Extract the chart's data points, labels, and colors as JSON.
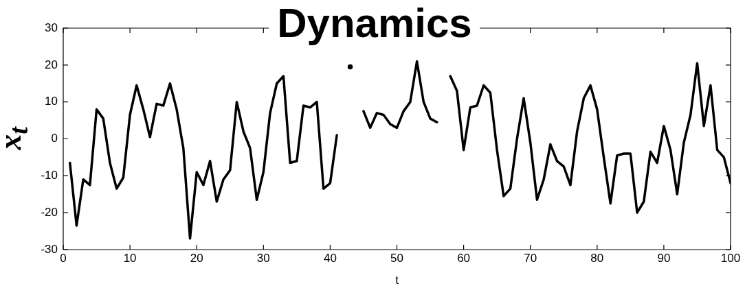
{
  "chart_data": {
    "type": "line",
    "title": "Dynamics",
    "xlabel": "t",
    "ylabel": "x$_{t}$",
    "x": [
      1,
      2,
      3,
      4,
      5,
      6,
      7,
      8,
      9,
      10,
      11,
      12,
      13,
      14,
      15,
      16,
      17,
      18,
      19,
      20,
      21,
      22,
      23,
      24,
      25,
      26,
      27,
      28,
      29,
      30,
      31,
      32,
      33,
      34,
      35,
      36,
      37,
      38,
      39,
      40,
      41,
      42,
      43,
      44,
      45,
      46,
      47,
      48,
      49,
      50,
      51,
      52,
      53,
      54,
      55,
      56,
      57,
      58,
      59,
      60,
      61,
      62,
      63,
      64,
      65,
      66,
      67,
      68,
      69,
      70,
      71,
      72,
      73,
      74,
      75,
      76,
      77,
      78,
      79,
      80,
      81,
      82,
      83,
      84,
      85,
      86,
      87,
      88,
      89,
      90,
      91,
      92,
      93,
      94,
      95,
      96,
      97,
      98,
      99,
      100
    ],
    "series": [
      {
        "color": "#000000",
        "values": [
          -6.5,
          -23.5,
          -11,
          -12.5,
          8,
          5.5,
          -6.5,
          -13.5,
          -10.5,
          6.5,
          14.5,
          8,
          0.5,
          9.5,
          9,
          15,
          8,
          -2.5,
          -27,
          -9,
          -12.5,
          -6,
          -17,
          -11,
          -8.5,
          10,
          2,
          -2.5,
          -16.5,
          -9,
          7,
          15,
          17,
          -6.5,
          -6,
          9,
          8.5,
          10,
          -13.5,
          -12,
          1,
          null,
          19.5,
          null,
          7.5,
          3,
          7,
          6.5,
          4,
          3,
          7.5,
          10,
          21,
          10,
          5.5,
          4.5,
          null,
          17,
          13,
          -3,
          8.5,
          9,
          14.5,
          12.5,
          -3,
          -15.5,
          -13.5,
          0,
          11,
          -1,
          -16.5,
          -11,
          -1.5,
          -6,
          -7.5,
          -12.5,
          2,
          11,
          14.5,
          8,
          -5,
          -17.5,
          -4.5,
          -4,
          -4,
          -20,
          -17,
          -3.5,
          -6.5,
          3.5,
          -3,
          -15,
          -1,
          6.5,
          20.5,
          3.5,
          14.5,
          -3,
          -5,
          -12
        ]
      }
    ],
    "xlim": [
      0,
      100
    ],
    "xticks": [
      0,
      10,
      20,
      30,
      40,
      50,
      60,
      70,
      80,
      90,
      100
    ],
    "ylim": [
      -30,
      30
    ],
    "yticks": [
      -30,
      -20,
      -10,
      0,
      10,
      20,
      30
    ],
    "grid": false,
    "legend": false,
    "marker": "none",
    "line_style": "solid"
  }
}
